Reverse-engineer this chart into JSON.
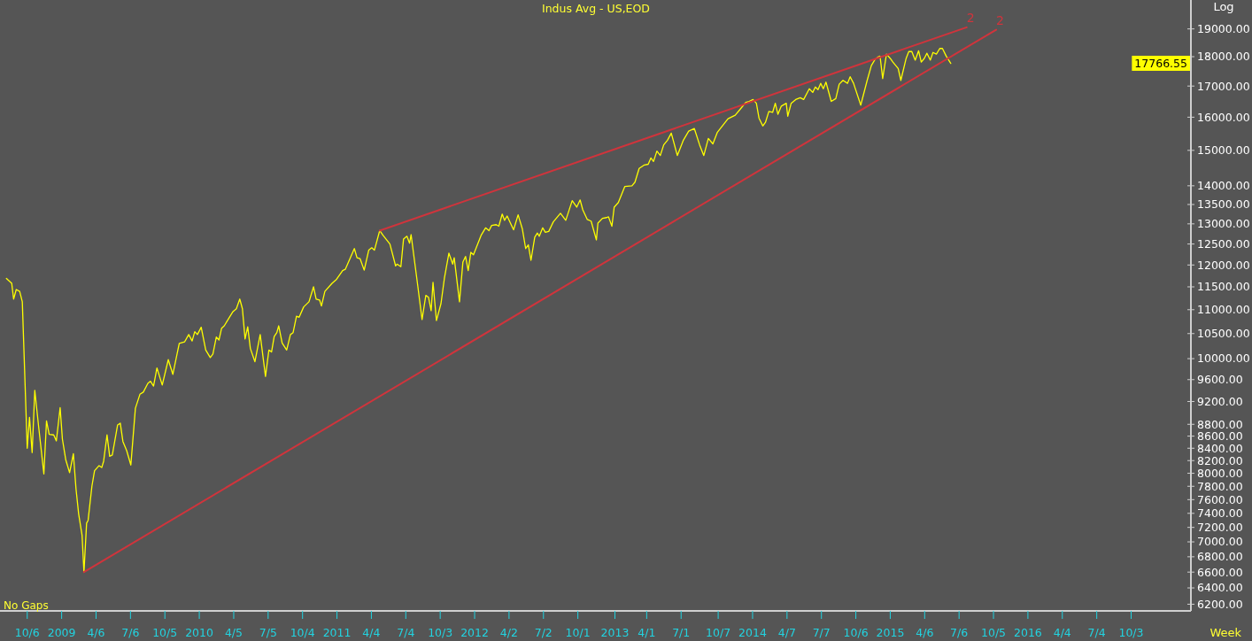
{
  "chart_data": {
    "type": "line",
    "title": "Indus Avg - US,EOD",
    "xlabel": "Week",
    "ylabel": "Log",
    "annotations": [
      "No Gaps",
      "17766.55"
    ],
    "log": true,
    "xlim": [
      "2008-07-26",
      "2017-03-10"
    ],
    "ylim": [
      6120,
      20100
    ],
    "xticks": [
      {
        "value": "2008-10-06",
        "label": "10/6"
      },
      {
        "value": "2009-01-05",
        "label": "2009"
      },
      {
        "value": "2009-04-06",
        "label": "4/6"
      },
      {
        "value": "2009-07-06",
        "label": "7/6"
      },
      {
        "value": "2009-10-05",
        "label": "10/5"
      },
      {
        "value": "2010-01-04",
        "label": "2010"
      },
      {
        "value": "2010-04-05",
        "label": "4/5"
      },
      {
        "value": "2010-07-05",
        "label": "7/5"
      },
      {
        "value": "2010-10-04",
        "label": "10/4"
      },
      {
        "value": "2011-01-03",
        "label": "2011"
      },
      {
        "value": "2011-04-04",
        "label": "4/4"
      },
      {
        "value": "2011-07-04",
        "label": "7/4"
      },
      {
        "value": "2011-10-03",
        "label": "10/3"
      },
      {
        "value": "2012-01-02",
        "label": "2012"
      },
      {
        "value": "2012-04-02",
        "label": "4/2"
      },
      {
        "value": "2012-07-02",
        "label": "7/2"
      },
      {
        "value": "2012-10-01",
        "label": "10/1"
      },
      {
        "value": "2013-01-07",
        "label": "2013"
      },
      {
        "value": "2013-04-01",
        "label": "4/1"
      },
      {
        "value": "2013-07-01",
        "label": "7/1"
      },
      {
        "value": "2013-10-07",
        "label": "10/7"
      },
      {
        "value": "2014-01-06",
        "label": "2014"
      },
      {
        "value": "2014-04-07",
        "label": "4/7"
      },
      {
        "value": "2014-07-07",
        "label": "7/7"
      },
      {
        "value": "2014-10-06",
        "label": "10/6"
      },
      {
        "value": "2015-01-05",
        "label": "2015"
      },
      {
        "value": "2015-04-06",
        "label": "4/6"
      },
      {
        "value": "2015-07-06",
        "label": "7/6"
      },
      {
        "value": "2015-10-05",
        "label": "10/5"
      },
      {
        "value": "2016-01-04",
        "label": "2016"
      },
      {
        "value": "2016-04-04",
        "label": "4/4"
      },
      {
        "value": "2016-07-04",
        "label": "7/4"
      },
      {
        "value": "2016-10-03",
        "label": "10/3"
      }
    ],
    "yticks": [
      {
        "value": 19000,
        "label": "19000.00"
      },
      {
        "value": 18000,
        "label": "18000.00"
      },
      {
        "value": 17000,
        "label": "17000.00"
      },
      {
        "value": 16000,
        "label": "16000.00"
      },
      {
        "value": 15000,
        "label": "15000.00"
      },
      {
        "value": 14000,
        "label": "14000.00"
      },
      {
        "value": 13500,
        "label": "13500.00"
      },
      {
        "value": 13000,
        "label": "13000.00"
      },
      {
        "value": 12500,
        "label": "12500.00"
      },
      {
        "value": 12000,
        "label": "12000.00"
      },
      {
        "value": 11500,
        "label": "11500.00"
      },
      {
        "value": 11000,
        "label": "11000.00"
      },
      {
        "value": 10500,
        "label": "10500.00"
      },
      {
        "value": 10000,
        "label": "10000.00"
      },
      {
        "value": 9600,
        "label": "9600.00"
      },
      {
        "value": 9200,
        "label": "9200.00"
      },
      {
        "value": 8800,
        "label": "8800.00"
      },
      {
        "value": 8600,
        "label": "8600.00"
      },
      {
        "value": 8400,
        "label": "8400.00"
      },
      {
        "value": 8200,
        "label": "8200.00"
      },
      {
        "value": 8000,
        "label": "8000.00"
      },
      {
        "value": 7800,
        "label": "7800.00"
      },
      {
        "value": 7600,
        "label": "7600.00"
      },
      {
        "value": 7400,
        "label": "7400.00"
      },
      {
        "value": 7200,
        "label": "7200.00"
      },
      {
        "value": 7000,
        "label": "7000.00"
      },
      {
        "value": 6800,
        "label": "6800.00"
      },
      {
        "value": 6600,
        "label": "6600.00"
      },
      {
        "value": 6400,
        "label": "6400.00"
      },
      {
        "value": 6200,
        "label": "6200.00"
      }
    ],
    "x": [
      "2008-08-12",
      "2008-08-26",
      "2008-08-31",
      "2008-09-07",
      "2008-09-16",
      "2008-09-23",
      "2008-10-06",
      "2008-10-12",
      "2008-10-19",
      "2008-10-26",
      "2008-11-05",
      "2008-11-19",
      "2008-11-26",
      "2008-12-03",
      "2008-12-15",
      "2008-12-22",
      "2009-01-01",
      "2009-01-07",
      "2009-01-16",
      "2009-01-26",
      "2009-02-05",
      "2009-02-12",
      "2009-02-19",
      "2009-02-28",
      "2009-03-05",
      "2009-03-12",
      "2009-03-16",
      "2009-03-26",
      "2009-04-02",
      "2009-04-14",
      "2009-04-21",
      "2009-04-26",
      "2009-05-05",
      "2009-05-12",
      "2009-05-19",
      "2009-06-02",
      "2009-06-09",
      "2009-06-16",
      "2009-06-26",
      "2009-07-07",
      "2009-07-19",
      "2009-07-31",
      "2009-08-09",
      "2009-08-21",
      "2009-08-28",
      "2009-09-05",
      "2009-09-14",
      "2009-09-28",
      "2009-10-14",
      "2009-10-26",
      "2009-11-12",
      "2009-11-26",
      "2009-12-07",
      "2009-12-16",
      "2009-12-23",
      "2009-12-30",
      "2010-01-09",
      "2010-01-21",
      "2010-02-02",
      "2010-02-09",
      "2010-02-18",
      "2010-02-25",
      "2010-03-04",
      "2010-03-11",
      "2010-04-03",
      "2010-04-12",
      "2010-04-21",
      "2010-04-28",
      "2010-05-05",
      "2010-05-12",
      "2010-05-19",
      "2010-05-31",
      "2010-06-14",
      "2010-06-28",
      "2010-07-07",
      "2010-07-14",
      "2010-07-21",
      "2010-07-28",
      "2010-08-02",
      "2010-08-11",
      "2010-08-23",
      "2010-09-02",
      "2010-09-09",
      "2010-09-18",
      "2010-09-25",
      "2010-10-07",
      "2010-10-21",
      "2010-11-02",
      "2010-11-09",
      "2010-11-18",
      "2010-11-23",
      "2010-12-02",
      "2010-12-21",
      "2011-01-02",
      "2011-01-18",
      "2011-01-25",
      "2011-02-18",
      "2011-02-25",
      "2011-03-05",
      "2011-03-16",
      "2011-03-28",
      "2011-04-05",
      "2011-04-12",
      "2011-04-26",
      "2011-05-05",
      "2011-05-23",
      "2011-06-07",
      "2011-06-11",
      "2011-06-21",
      "2011-06-28",
      "2011-07-07",
      "2011-07-14",
      "2011-07-18",
      "2011-08-05",
      "2011-08-16",
      "2011-08-26",
      "2011-09-02",
      "2011-09-09",
      "2011-09-14",
      "2011-09-23",
      "2011-10-05",
      "2011-10-14",
      "2011-10-26",
      "2011-11-05",
      "2011-11-09",
      "2011-11-23",
      "2011-12-02",
      "2011-12-09",
      "2011-12-16",
      "2011-12-23",
      "2011-12-30",
      "2012-01-19",
      "2012-01-31",
      "2012-02-09",
      "2012-02-16",
      "2012-02-28",
      "2012-03-06",
      "2012-03-15",
      "2012-03-21",
      "2012-03-28",
      "2012-04-14",
      "2012-04-26",
      "2012-05-07",
      "2012-05-16",
      "2012-05-23",
      "2012-05-30",
      "2012-06-09",
      "2012-06-16",
      "2012-06-21",
      "2012-06-30",
      "2012-07-07",
      "2012-07-16",
      "2012-07-28",
      "2012-08-16",
      "2012-08-30",
      "2012-09-16",
      "2012-09-28",
      "2012-10-07",
      "2012-10-14",
      "2012-10-26",
      "2012-11-05",
      "2012-11-19",
      "2012-11-23",
      "2012-12-05",
      "2012-12-16",
      "2012-12-21",
      "2012-12-30",
      "2013-01-05",
      "2013-01-16",
      "2013-02-02",
      "2013-02-21",
      "2013-03-01",
      "2013-03-12",
      "2013-03-26",
      "2013-04-05",
      "2013-04-12",
      "2013-04-19",
      "2013-04-28",
      "2013-05-07",
      "2013-05-16",
      "2013-05-26",
      "2013-06-05",
      "2013-06-21",
      "2013-07-07",
      "2013-07-21",
      "2013-08-05",
      "2013-08-19",
      "2013-08-30",
      "2013-09-11",
      "2013-09-23",
      "2013-10-05",
      "2013-10-16",
      "2013-11-02",
      "2013-11-21",
      "2013-12-05",
      "2013-12-19",
      "2013-12-28",
      "2014-01-07",
      "2014-01-16",
      "2014-01-23",
      "2014-02-02",
      "2014-02-09",
      "2014-02-18",
      "2014-02-28",
      "2014-03-07",
      "2014-03-14",
      "2014-03-23",
      "2014-04-05",
      "2014-04-09",
      "2014-04-18",
      "2014-04-30",
      "2014-05-12",
      "2014-05-21",
      "2014-06-05",
      "2014-06-14",
      "2014-06-21",
      "2014-06-28",
      "2014-07-05",
      "2014-07-12",
      "2014-07-19",
      "2014-08-02",
      "2014-08-14",
      "2014-08-23",
      "2014-09-02",
      "2014-09-14",
      "2014-09-21",
      "2014-09-30",
      "2014-10-19",
      "2014-11-05",
      "2014-11-16",
      "2014-11-26",
      "2014-12-05",
      "2014-12-09",
      "2014-12-16",
      "2014-12-26",
      "2015-01-05",
      "2015-01-12",
      "2015-01-26",
      "2015-02-02",
      "2015-02-16",
      "2015-02-23",
      "2015-03-03",
      "2015-03-12",
      "2015-03-21",
      "2015-03-28",
      "2015-04-05",
      "2015-04-12",
      "2015-04-21",
      "2015-04-28",
      "2015-05-07",
      "2015-05-16",
      "2015-05-23",
      "2015-06-02",
      "2015-06-14"
    ],
    "series": [
      {
        "color": "#ffff00",
        "values": [
          11690,
          11580,
          11230,
          11440,
          11400,
          11170,
          8400,
          8920,
          8330,
          9400,
          8770,
          7990,
          8860,
          8630,
          8620,
          8520,
          9090,
          8550,
          8210,
          8010,
          8310,
          7760,
          7390,
          7090,
          6600,
          7260,
          7300,
          7800,
          8040,
          8120,
          8090,
          8190,
          8620,
          8270,
          8290,
          8790,
          8820,
          8510,
          8360,
          8130,
          9080,
          9330,
          9370,
          9530,
          9570,
          9480,
          9820,
          9500,
          9980,
          9700,
          10300,
          10330,
          10480,
          10350,
          10540,
          10480,
          10630,
          10170,
          10020,
          10090,
          10430,
          10370,
          10610,
          10660,
          10960,
          11020,
          11230,
          11020,
          10390,
          10640,
          10200,
          9940,
          10480,
          9660,
          10170,
          10130,
          10440,
          10520,
          10660,
          10310,
          10170,
          10480,
          10520,
          10860,
          10840,
          11060,
          11170,
          11500,
          11230,
          11210,
          11080,
          11400,
          11580,
          11670,
          11870,
          11900,
          12390,
          12170,
          12150,
          11880,
          12350,
          12410,
          12350,
          12830,
          12710,
          12500,
          11980,
          12020,
          11960,
          12620,
          12690,
          12520,
          12730,
          11500,
          10790,
          11310,
          11270,
          10980,
          11600,
          10770,
          11130,
          11690,
          12280,
          12020,
          12170,
          11170,
          12070,
          12200,
          11870,
          12300,
          12240,
          12710,
          12900,
          12830,
          12960,
          12980,
          12940,
          13250,
          13090,
          13200,
          12850,
          13230,
          12880,
          12390,
          12480,
          12110,
          12670,
          12770,
          12690,
          12900,
          12790,
          12810,
          13050,
          13270,
          13090,
          13600,
          13430,
          13620,
          13360,
          13110,
          13070,
          12600,
          13020,
          13140,
          13160,
          13180,
          12940,
          13430,
          13550,
          13980,
          14000,
          14100,
          14480,
          14580,
          14600,
          14780,
          14680,
          14980,
          14850,
          15160,
          15300,
          15510,
          14850,
          15300,
          15570,
          15650,
          15160,
          14850,
          15350,
          15190,
          15540,
          15700,
          15950,
          16060,
          16260,
          16470,
          16500,
          16560,
          16440,
          15970,
          15730,
          15840,
          16180,
          16150,
          16440,
          16090,
          16350,
          16440,
          16030,
          16440,
          16560,
          16620,
          16560,
          16910,
          16790,
          16970,
          16880,
          17090,
          16910,
          17130,
          16500,
          16590,
          17060,
          17190,
          17090,
          17310,
          17090,
          16380,
          17190,
          17690,
          17910,
          18000,
          18020,
          17250,
          18090,
          17940,
          17810,
          17590,
          17190,
          17940,
          18180,
          18180,
          17880,
          18210,
          17810,
          17940,
          18120,
          17880,
          18150,
          18090,
          18290,
          18290,
          18020,
          17766.55
        ]
      },
      {
        "name": "2",
        "type": "line",
        "color": "#d0343c",
        "x": [
          "2011-04-26",
          "2015-07-26"
        ],
        "values": [
          12830,
          19060
        ]
      },
      {
        "name": "2",
        "type": "line",
        "color": "#d0343c",
        "x": [
          "2009-03-05",
          "2015-10-12"
        ],
        "values": [
          6600,
          18970
        ]
      }
    ]
  }
}
